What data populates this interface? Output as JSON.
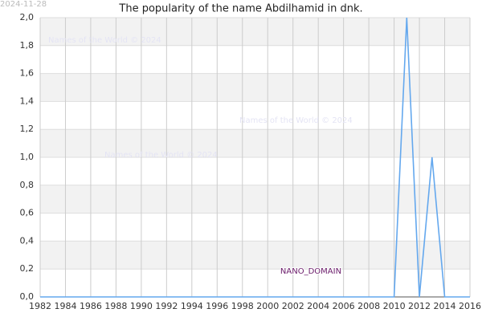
{
  "chart_data": {
    "type": "line",
    "title": "The popularity of the name Abdilhamid in dnk.",
    "date_stamp": "2024-11-28",
    "watermarks": [
      "Names of the World © 2024",
      "Names of the World © 2024",
      "Names of the World © 2024"
    ],
    "annotation": "NANO_DOMAIN",
    "x": [
      1982,
      1983,
      1984,
      1985,
      1986,
      1987,
      1988,
      1989,
      1990,
      1991,
      1992,
      1993,
      1994,
      1995,
      1996,
      1997,
      1998,
      1999,
      2000,
      2001,
      2002,
      2003,
      2004,
      2005,
      2006,
      2007,
      2008,
      2009,
      2010,
      2011,
      2012,
      2013,
      2014,
      2015,
      2016
    ],
    "series": [
      {
        "color": "#64a8ee",
        "values": [
          0,
          0,
          0,
          0,
          0,
          0,
          0,
          0,
          0,
          0,
          0,
          0,
          0,
          0,
          0,
          0,
          0,
          0,
          0,
          0,
          0,
          0,
          0,
          0,
          0,
          0,
          0,
          0,
          0,
          2,
          0,
          1,
          0,
          0,
          0
        ]
      }
    ],
    "xlim": [
      1982,
      2016
    ],
    "xticks": [
      1982,
      1984,
      1986,
      1988,
      1990,
      1992,
      1994,
      1996,
      1998,
      2000,
      2002,
      2004,
      2006,
      2008,
      2010,
      2012,
      2014,
      2016
    ],
    "ylim": [
      0,
      2
    ],
    "yticks": [
      {
        "value": 0,
        "label": "0,0"
      },
      {
        "value": 0.2,
        "label": "0,2"
      },
      {
        "value": 0.4,
        "label": "0,4"
      },
      {
        "value": 0.6,
        "label": "0,6"
      },
      {
        "value": 0.8,
        "label": "0,8"
      },
      {
        "value": 1.0,
        "label": "1,0"
      },
      {
        "value": 1.2,
        "label": "1,2"
      },
      {
        "value": 1.4,
        "label": "1,4"
      },
      {
        "value": 1.6,
        "label": "1,6"
      },
      {
        "value": 1.8,
        "label": "1,8"
      },
      {
        "value": 2.0,
        "label": "2,0"
      }
    ],
    "grid": true
  }
}
